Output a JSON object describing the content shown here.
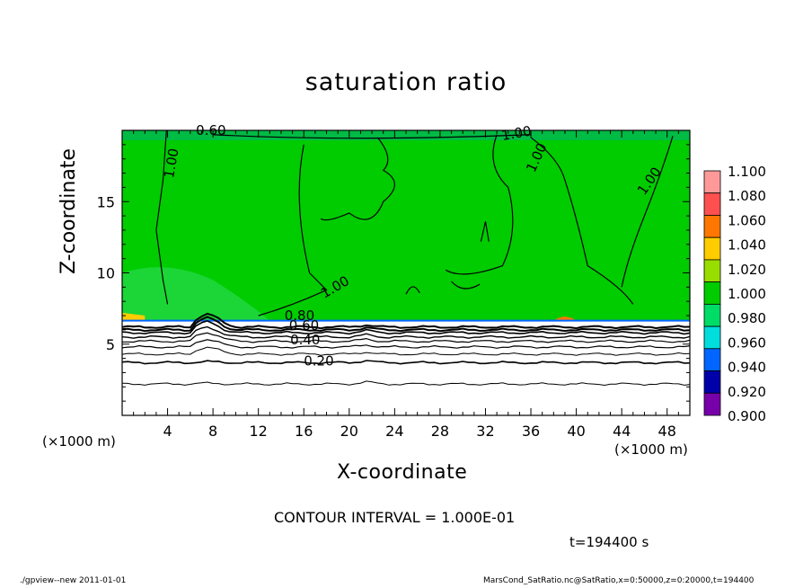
{
  "chart_data": {
    "type": "heatmap",
    "title": "saturation ratio",
    "xlabel": "X-coordinate",
    "ylabel": "Z-coordinate",
    "x_unit_left": "(×1000 m)",
    "x_unit_right": "(×1000 m)",
    "xlim": [
      0,
      50
    ],
    "ylim": [
      0,
      20
    ],
    "xticks": [
      4,
      8,
      12,
      16,
      20,
      24,
      28,
      32,
      36,
      40,
      44,
      48
    ],
    "yticks": [
      5,
      10,
      15
    ],
    "colorbar": {
      "levels": [
        "1.100",
        "1.080",
        "1.060",
        "1.040",
        "1.020",
        "1.000",
        "0.980",
        "0.960",
        "0.940",
        "0.920",
        "0.900"
      ],
      "colors": [
        "#ff9999",
        "#ff5050",
        "#ff7700",
        "#ffcc00",
        "#99dd00",
        "#00cc00",
        "#00dd66",
        "#00dddd",
        "#0066ff",
        "#0000aa",
        "#7700aa"
      ]
    },
    "contour_labels": [
      "1.00",
      "1.00",
      "1.00",
      "1.00",
      "1.00",
      "0.80",
      "0.60",
      "0.40",
      "0.20",
      "0.60"
    ],
    "dominant_value_above_z_6_6km": 1.0,
    "contour_interval_text": "CONTOUR INTERVAL = 1.000E-01",
    "time_text": "t=194400 s"
  },
  "footer": {
    "left": "./gpview--new   2011-01-01",
    "right": "MarsCond_SatRatio.nc@SatRatio,x=0:50000,z=0:20000,t=194400"
  },
  "colors": {
    "background": "#ffffff",
    "saturated_green": "#00cc00",
    "text": "#000000"
  }
}
